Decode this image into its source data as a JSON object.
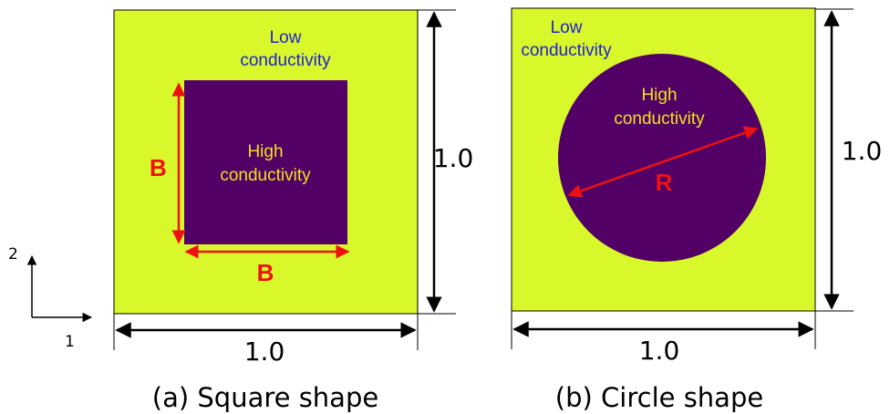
{
  "colors": {
    "low_conductivity_fill": "#d8f82c",
    "high_conductivity_fill": "#520066",
    "dimension_arrow": "#ee1111",
    "low_label": "#2222cc",
    "high_label": "#f0e020",
    "outline": "#000000"
  },
  "axes": {
    "axis_1_label": "1",
    "axis_2_label": "2"
  },
  "panel_a": {
    "low_label_line1": "Low",
    "low_label_line2": "conductivity",
    "high_label_line1": "High",
    "high_label_line2": "conductivity",
    "inclusion_height_label": "B",
    "inclusion_width_label": "B",
    "width_label": "1.0",
    "height_label": "1.0",
    "caption": "(a) Square shape"
  },
  "panel_b": {
    "low_label_line1": "Low",
    "low_label_line2": "conductivity",
    "high_label_line1": "High",
    "high_label_line2": "conductivity",
    "radius_label": "R",
    "width_label": "1.0",
    "height_label": "1.0",
    "caption": "(b) Circle shape"
  }
}
